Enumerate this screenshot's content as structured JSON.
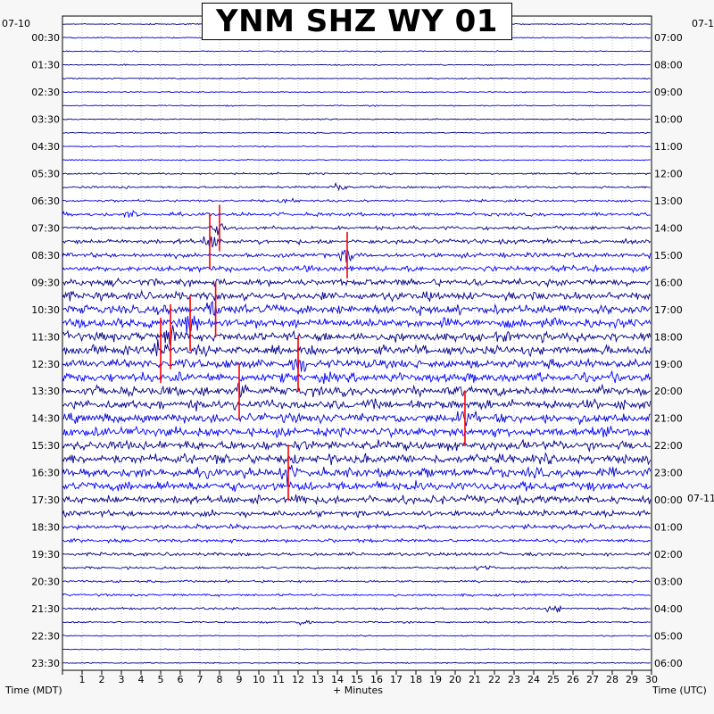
{
  "chart_data": {
    "type": "line",
    "title": "YNM SHZ WY 01",
    "xlabel": "+ Minutes",
    "left_axis_label": "Time (MDT)",
    "right_axis_label": "Time (UTC)",
    "left_date_label": "07-10",
    "right_date_label": "07-1",
    "right_date_change_label": "07-11",
    "xlim": [
      0,
      30
    ],
    "x_ticks": [
      "1",
      "2",
      "3",
      "4",
      "5",
      "6",
      "7",
      "8",
      "9",
      "10",
      "11",
      "12",
      "13",
      "14",
      "15",
      "16",
      "17",
      "18",
      "19",
      "20",
      "21",
      "22",
      "23",
      "24",
      "25",
      "26",
      "27",
      "28",
      "29",
      "30"
    ],
    "trace_count": 48,
    "trace_minutes": 30,
    "left_time_labels": [
      "00:30",
      "01:30",
      "02:30",
      "03:30",
      "04:30",
      "05:30",
      "06:30",
      "07:30",
      "08:30",
      "09:30",
      "10:30",
      "11:30",
      "12:30",
      "13:30",
      "14:30",
      "15:30",
      "16:30",
      "17:30",
      "18:30",
      "19:30",
      "20:30",
      "21:30",
      "22:30",
      "23:30"
    ],
    "right_time_labels": [
      "07:00",
      "08:00",
      "09:00",
      "10:00",
      "11:00",
      "12:00",
      "13:00",
      "14:00",
      "15:00",
      "16:00",
      "17:00",
      "18:00",
      "19:00",
      "20:00",
      "21:00",
      "22:00",
      "23:00",
      "00:00",
      "01:00",
      "02:00",
      "03:00",
      "04:00",
      "05:00",
      "06:00"
    ],
    "series_colors": [
      "#00008b",
      "#0000cd",
      "#0000ff",
      "#000080"
    ],
    "clip_color": "#ff0000",
    "trace_amplitude_levels": [
      1,
      1,
      1,
      1,
      1,
      1,
      1,
      1,
      1,
      1,
      1,
      1.5,
      2,
      2,
      3,
      3,
      4,
      4,
      5,
      6,
      7,
      8,
      8,
      8,
      8,
      8,
      8,
      8,
      8,
      8,
      8,
      8,
      8,
      8,
      8,
      7,
      5,
      4,
      3,
      3,
      2,
      2,
      2,
      2,
      1.5,
      1,
      1,
      1
    ],
    "events": [
      {
        "trace": 12,
        "minute": 14.0,
        "amplitude": 6
      },
      {
        "trace": 13,
        "minute": 11.5,
        "amplitude": 4
      },
      {
        "trace": 14,
        "minute": 3.5,
        "amplitude": 4
      },
      {
        "trace": 15,
        "minute": 8.0,
        "amplitude": 10
      },
      {
        "trace": 16,
        "minute": 7.5,
        "amplitude": 12
      },
      {
        "trace": 17,
        "minute": 14.5,
        "amplitude": 10
      },
      {
        "trace": 21,
        "minute": 7.8,
        "amplitude": 12
      },
      {
        "trace": 22,
        "minute": 6.5,
        "amplitude": 12
      },
      {
        "trace": 23,
        "minute": 5.5,
        "amplitude": 14
      },
      {
        "trace": 24,
        "minute": 5.0,
        "amplitude": 14
      },
      {
        "trace": 25,
        "minute": 12.0,
        "amplitude": 12
      },
      {
        "trace": 27,
        "minute": 9.0,
        "amplitude": 12
      },
      {
        "trace": 29,
        "minute": 20.5,
        "amplitude": 12
      },
      {
        "trace": 33,
        "minute": 11.5,
        "amplitude": 12
      },
      {
        "trace": 35,
        "minute": 12.0,
        "amplitude": 8
      },
      {
        "trace": 40,
        "minute": 21.5,
        "amplitude": 5
      },
      {
        "trace": 43,
        "minute": 25.0,
        "amplitude": 6
      },
      {
        "trace": 44,
        "minute": 12.3,
        "amplitude": 5
      }
    ]
  }
}
